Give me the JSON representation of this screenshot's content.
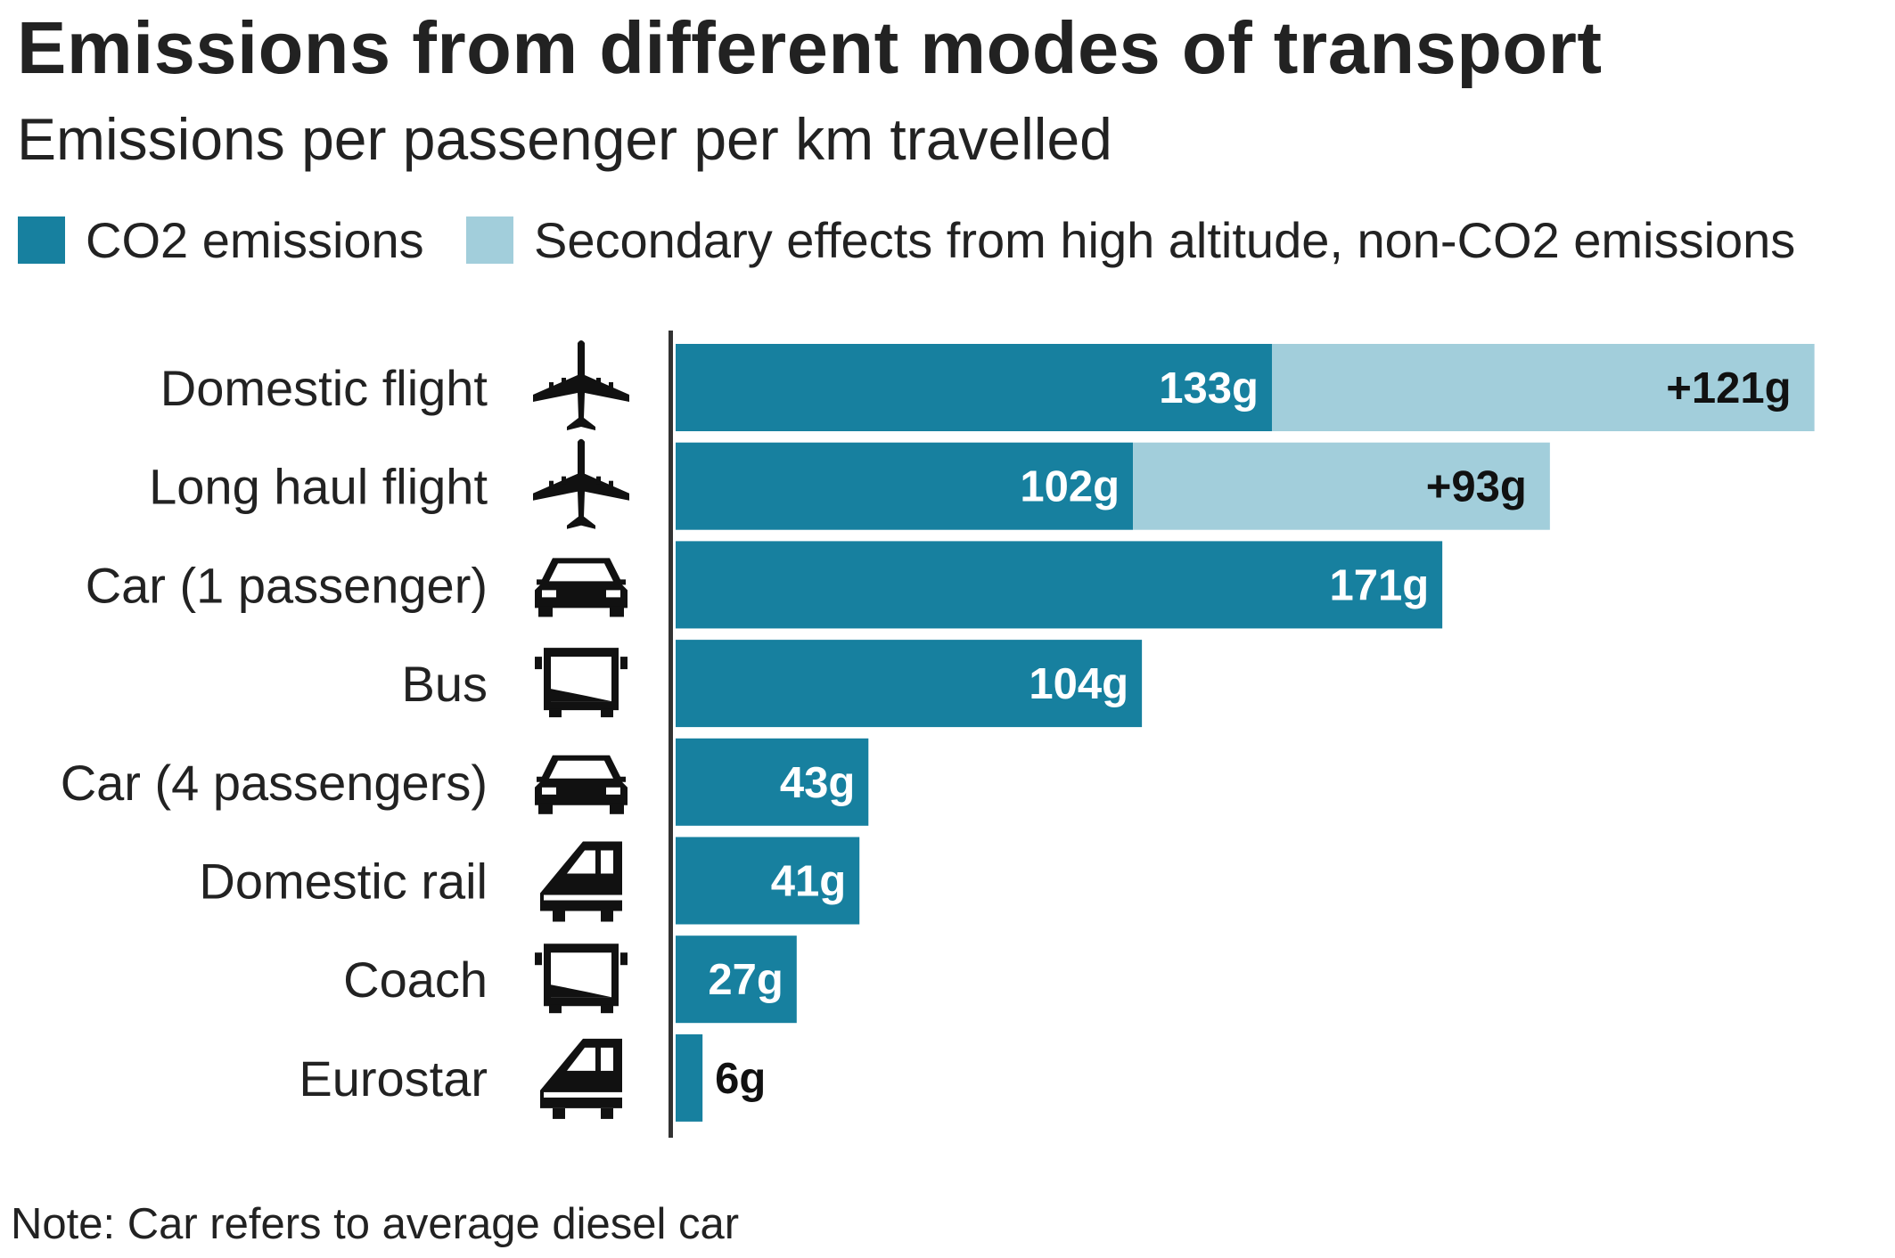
{
  "chart_data": {
    "type": "bar",
    "orientation": "horizontal",
    "stacked": true,
    "title": "Emissions from different modes of transport",
    "subtitle": "Emissions per passenger per km travelled",
    "categories": [
      "Domestic flight",
      "Long haul flight",
      "Car (1 passenger)",
      "Bus",
      "Car (4 passengers)",
      "Domestic rail",
      "Coach",
      "Eurostar"
    ],
    "category_icons": [
      "airplane-icon",
      "airplane-icon",
      "car-icon",
      "bus-icon",
      "car-icon",
      "train-icon",
      "bus-icon",
      "train-icon"
    ],
    "series": [
      {
        "name": "CO2 emissions",
        "color": "#17809f",
        "values": [
          133,
          102,
          171,
          104,
          43,
          41,
          27,
          6
        ],
        "labels": [
          "133g",
          "102g",
          "171g",
          "104g",
          "43g",
          "41g",
          "27g",
          "6g"
        ]
      },
      {
        "name": "Secondary effects from high altitude, non-CO2 emissions",
        "color": "#a2cedb",
        "values": [
          121,
          93,
          0,
          0,
          0,
          0,
          0,
          0
        ],
        "labels": [
          "+121g",
          "+93g",
          "",
          "",
          "",
          "",
          "",
          ""
        ]
      }
    ],
    "unit": "g",
    "xlim": [
      0,
      260
    ],
    "grid": false,
    "legend_position": "top-left",
    "note": "Note: Car refers to average diesel car"
  }
}
